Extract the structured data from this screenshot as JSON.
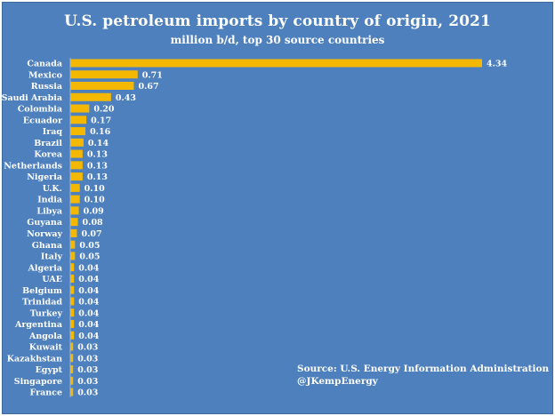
{
  "title": "U.S. petroleum imports by country of origin, 2021",
  "subtitle": "million b/d, top 30 source countries",
  "source_line": "Source: U.S. Energy Information Administration",
  "credit_line": "@JKempEnergy",
  "colors": {
    "background": "#4e80bd",
    "bar": "#f5b800",
    "text": "#ffffff"
  },
  "chart_data": {
    "type": "bar",
    "orientation": "horizontal",
    "title": "U.S. petroleum imports by country of origin, 2021",
    "subtitle": "million b/d, top 30 source countries",
    "xlabel": "",
    "ylabel": "",
    "grid": false,
    "legend": "none",
    "xlim": [
      0,
      4.34
    ],
    "categories": [
      "Canada",
      "Mexico",
      "Russia",
      "Saudi Arabia",
      "Colombia",
      "Ecuador",
      "Iraq",
      "Brazil",
      "Korea",
      "Netherlands",
      "Nigeria",
      "U.K.",
      "India",
      "Libya",
      "Guyana",
      "Norway",
      "Ghana",
      "Italy",
      "Algeria",
      "UAE",
      "Belgium",
      "Trinidad",
      "Turkey",
      "Argentina",
      "Angola",
      "Kuwait",
      "Kazakhstan",
      "Egypt",
      "Singapore",
      "France"
    ],
    "values": [
      4.34,
      0.71,
      0.67,
      0.43,
      0.2,
      0.17,
      0.16,
      0.14,
      0.13,
      0.13,
      0.13,
      0.1,
      0.1,
      0.09,
      0.08,
      0.07,
      0.05,
      0.05,
      0.04,
      0.04,
      0.04,
      0.04,
      0.04,
      0.04,
      0.04,
      0.03,
      0.03,
      0.03,
      0.03,
      0.03
    ],
    "value_labels": [
      "4.34",
      "0.71",
      "0.67",
      "0.43",
      "0.20",
      "0.17",
      "0.16",
      "0.14",
      "0.13",
      "0.13",
      "0.13",
      "0.10",
      "0.10",
      "0.09",
      "0.08",
      "0.07",
      "0.05",
      "0.05",
      "0.04",
      "0.04",
      "0.04",
      "0.04",
      "0.04",
      "0.04",
      "0.04",
      "0.03",
      "0.03",
      "0.03",
      "0.03",
      "0.03"
    ]
  }
}
